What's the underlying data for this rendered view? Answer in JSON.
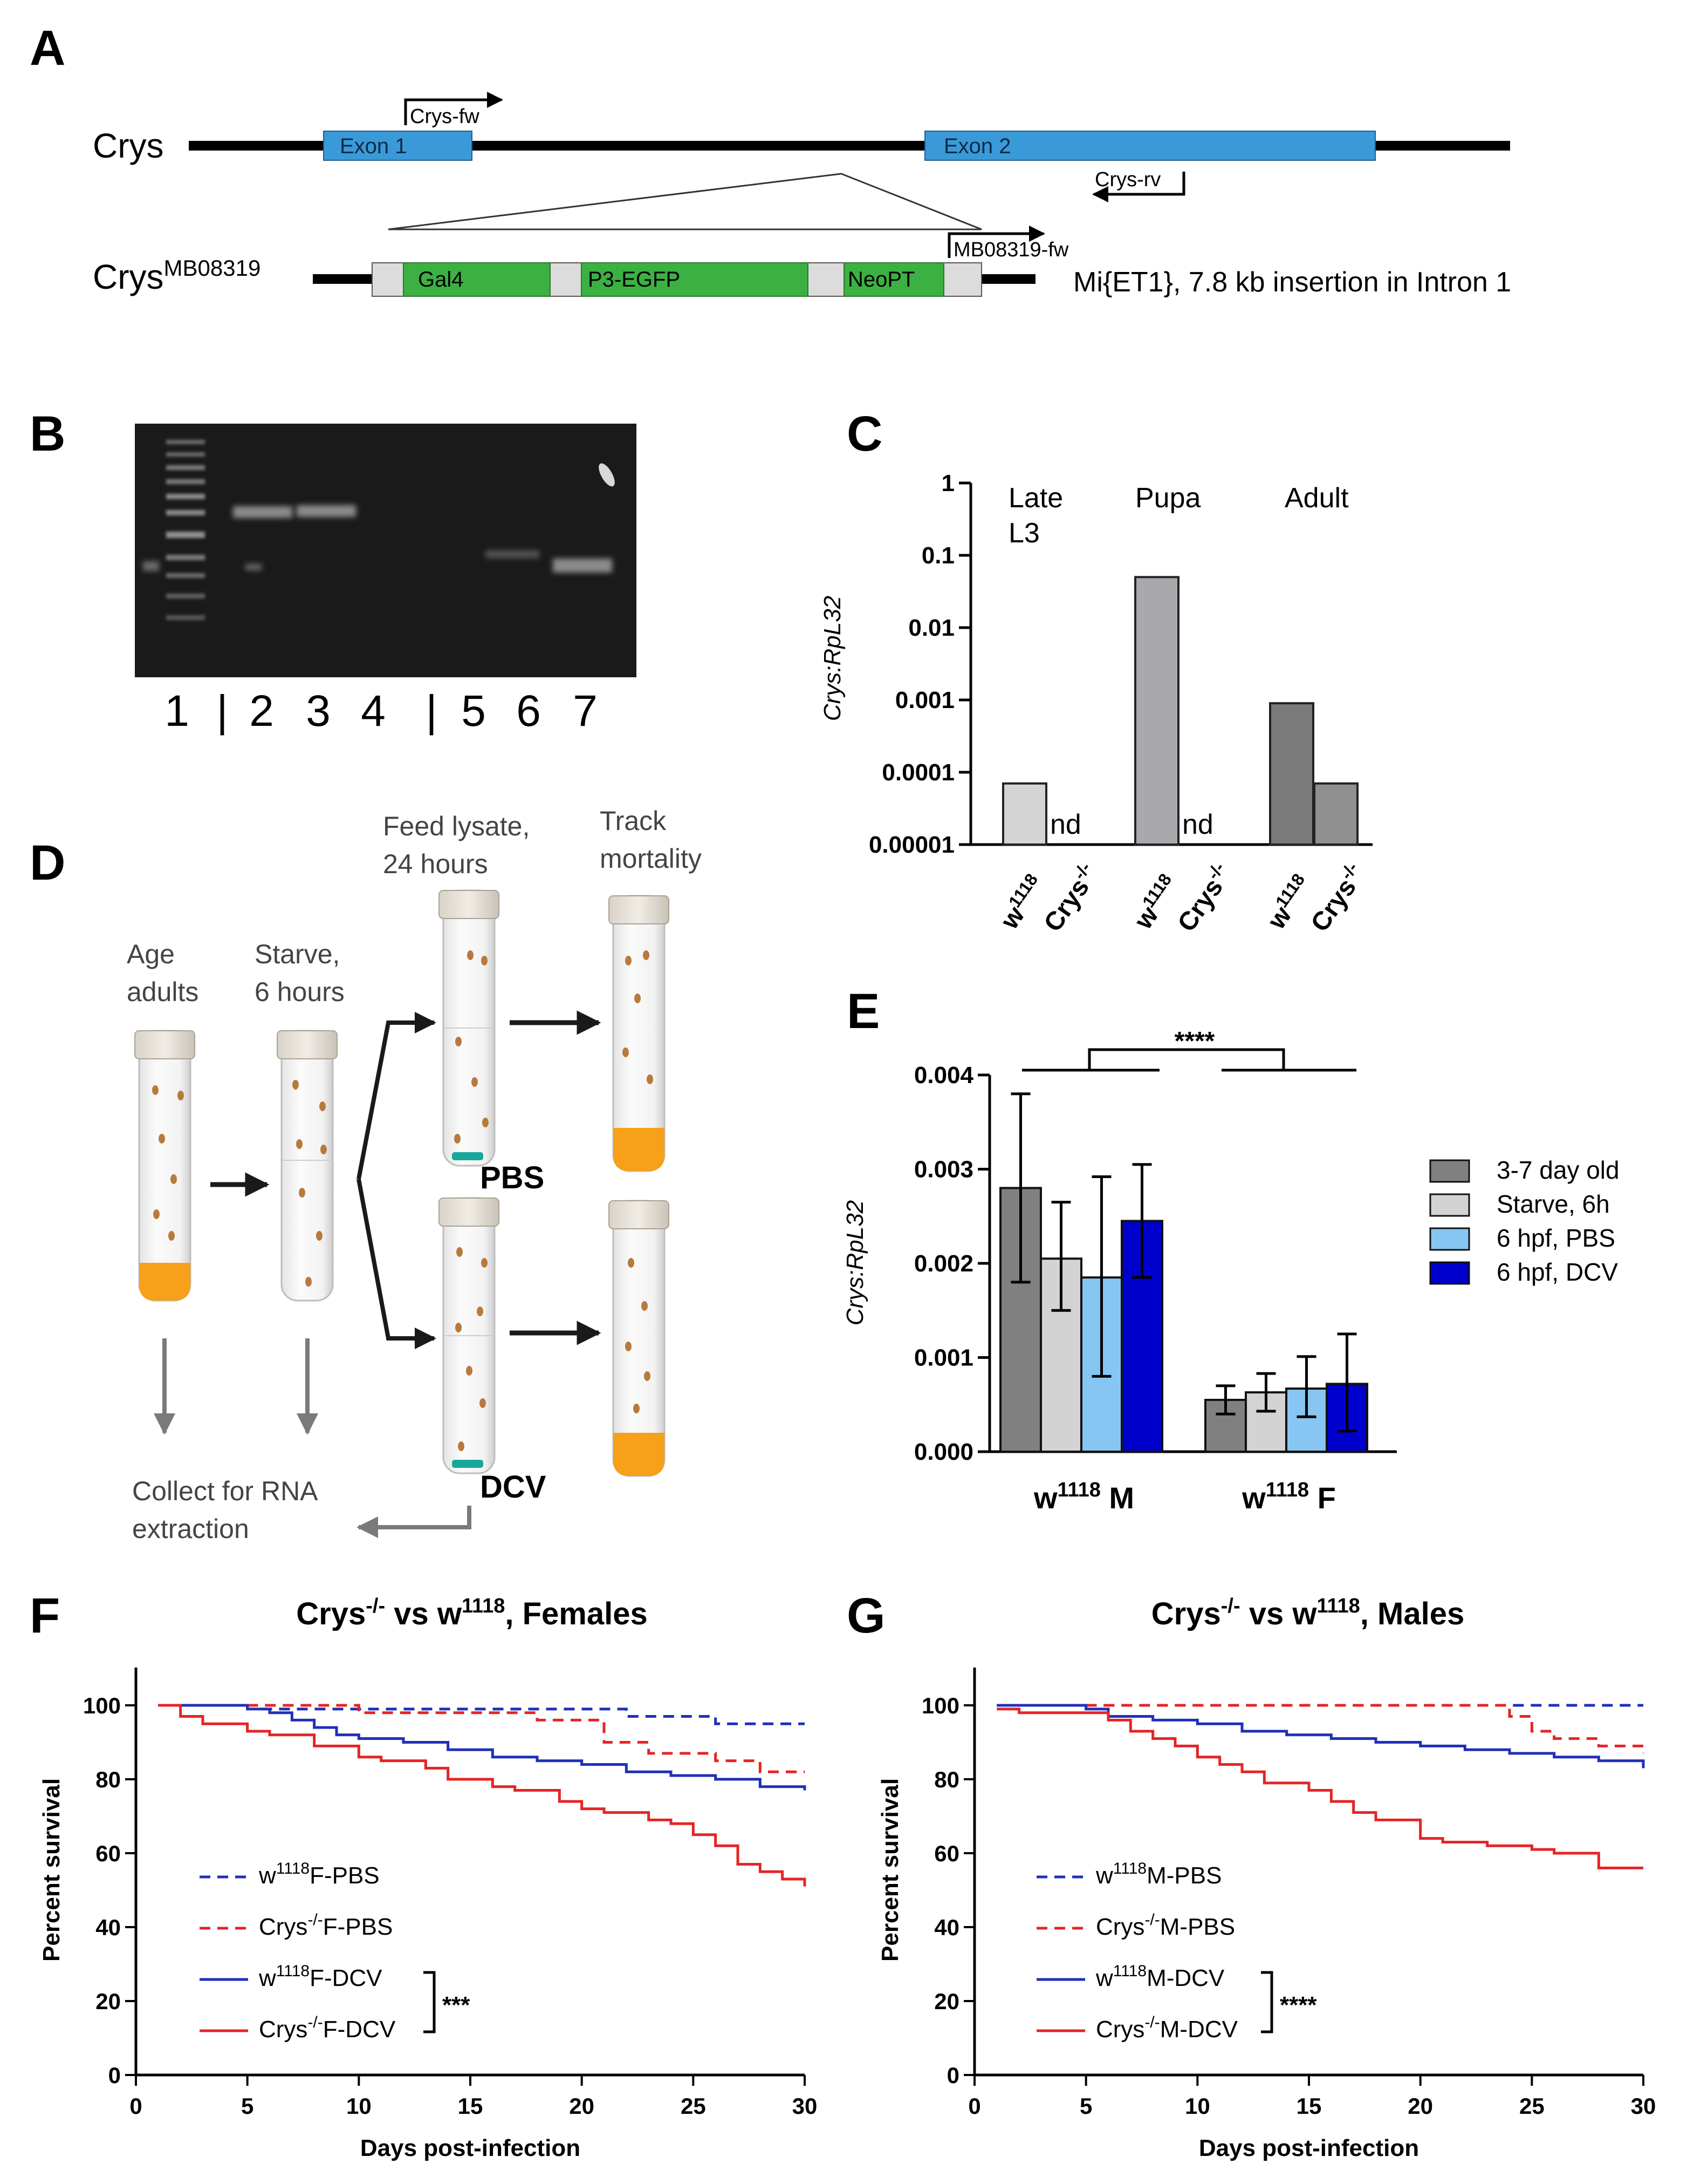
{
  "panel_labels": [
    "A",
    "B",
    "C",
    "D",
    "E",
    "F",
    "G"
  ],
  "colors": {
    "exon": "#3a9ad8",
    "cassette": "#3cb043",
    "gel_bg": "#1a1a1a",
    "c_w1118_l3": "#d4d4d4",
    "c_w1118_pupa": "#a9a9ad",
    "c_w1118_adult": "#7a7a7a",
    "c_crys_adult": "#909090",
    "e_age": "#808080",
    "e_starve": "#d3d3d3",
    "e_pbs": "#87c6f2",
    "e_dcv": "#0000cc",
    "wt": "#1f2fb8",
    "crys": "#e52424",
    "food": "#f7a019",
    "plug": "#17a79b"
  },
  "panel_a": {
    "gene": "Crys",
    "allele_base": "Crys",
    "allele_sup": "MB08319",
    "exon1": "Exon 1",
    "exon2": "Exon 2",
    "primer_fw": "Crys-fw",
    "primer_rv": "Crys-rv",
    "primer_mb": "MB08319-fw",
    "seg_gal4": "Gal4",
    "seg_p3": "P3-EGFP",
    "seg_neo": "NeoPT",
    "insertion": "Mi{ET1}, 7.8 kb insertion in Intron 1"
  },
  "panel_b": {
    "lanes": [
      "1",
      "2",
      "3",
      "4",
      "5",
      "6",
      "7"
    ],
    "sep": "|"
  },
  "panel_d": {
    "age": [
      "Age",
      "adults"
    ],
    "starve": [
      "Starve,",
      "6 hours"
    ],
    "feed": [
      "Feed lysate,",
      "24 hours"
    ],
    "track": [
      "Track",
      "mortality"
    ],
    "pbs": "PBS",
    "dcv": "DCV",
    "collect": [
      "Collect for RNA",
      "extraction"
    ]
  },
  "chart_data": [
    {
      "id": "C",
      "type": "bar",
      "scale": "log",
      "ylabel": "Crys:RpL32",
      "yticks": [
        "1",
        "0.1",
        "0.01",
        "0.001",
        "0.0001",
        "0.00001"
      ],
      "stages": [
        [
          "Late",
          "L3"
        ],
        [
          "Pupa"
        ],
        [
          "Adult"
        ]
      ],
      "categories": [
        "w1118",
        "Crys-/-",
        "w1118",
        "Crys-/-",
        "w1118",
        "Crys-/-"
      ],
      "w_base": "w",
      "w_sup": "1118",
      "crys_base": "Crys",
      "crys_sup": "-/-",
      "values": [
        7e-05,
        null,
        0.05,
        null,
        0.0009,
        7e-05
      ],
      "labels": [
        "",
        "nd",
        "",
        "nd",
        "",
        ""
      ]
    },
    {
      "id": "E",
      "type": "bar",
      "ylabel": "Crys:RpL32",
      "ylim": [
        0,
        0.004
      ],
      "yticks": [
        "0.004",
        "0.003",
        "0.002",
        "0.001",
        "0.000"
      ],
      "groups": [
        {
          "base": "w",
          "sup": "1118",
          "suffix": " M"
        },
        {
          "base": "w",
          "sup": "1118",
          "suffix": " F"
        }
      ],
      "legend": [
        "3-7 day old",
        "Starve, 6h",
        "6 hpf, PBS",
        "6 hpf, DCV"
      ],
      "significance": "****",
      "series": [
        {
          "name": "3-7 day old",
          "values": [
            0.0028,
            0.00055
          ],
          "err_low": [
            0.001,
            0.00015
          ],
          "err_high": [
            0.001,
            0.00015
          ]
        },
        {
          "name": "Starve, 6h",
          "values": [
            0.00205,
            0.00063
          ],
          "err_low": [
            0.00055,
            0.0002
          ],
          "err_high": [
            0.0006,
            0.0002
          ]
        },
        {
          "name": "6 hpf, PBS",
          "values": [
            0.00185,
            0.00067
          ],
          "err_low": [
            0.00105,
            0.0003
          ],
          "err_high": [
            0.00107,
            0.00034
          ]
        },
        {
          "name": "6 hpf, DCV",
          "values": [
            0.00245,
            0.00072
          ],
          "err_low": [
            0.0006,
            0.0005
          ],
          "err_high": [
            0.0006,
            0.00053
          ]
        }
      ]
    },
    {
      "id": "F",
      "type": "line",
      "step": true,
      "title": {
        "a": "Crys",
        "b": "-/-",
        "c": " vs w",
        "d": "1118",
        "e": ", Females"
      },
      "xlabel": "Days post-infection",
      "ylabel": "Percent survival",
      "xlim": [
        0,
        30
      ],
      "ylim": [
        0,
        100
      ],
      "xticks": [
        "0",
        "5",
        "10",
        "15",
        "20",
        "25",
        "30"
      ],
      "yticks": [
        "0",
        "20",
        "40",
        "60",
        "80",
        "100"
      ],
      "significance": "***",
      "series": [
        {
          "base": "w",
          "sup": "1118",
          "suffix": "F-PBS",
          "style": "dashed",
          "color": "wt",
          "x": [
            1,
            5.5,
            22,
            26,
            30
          ],
          "y": [
            100,
            99,
            97,
            95,
            95
          ]
        },
        {
          "base": "Crys",
          "sup": "-/-",
          "suffix": "F-PBS",
          "style": "dashed",
          "color": "crys",
          "x": [
            1,
            6.5,
            10,
            18,
            21,
            23,
            26,
            28,
            30
          ],
          "y": [
            100,
            100,
            98,
            96,
            90,
            87,
            85,
            82,
            82
          ]
        },
        {
          "base": "w",
          "sup": "1118",
          "suffix": "F-DCV",
          "style": "solid",
          "color": "wt",
          "x": [
            1,
            5,
            6,
            7,
            8,
            9,
            10,
            12,
            14,
            16,
            18,
            20,
            22,
            24,
            26,
            28,
            30
          ],
          "y": [
            100,
            99,
            98,
            96,
            94,
            92,
            91,
            90,
            88,
            86,
            85,
            84,
            82,
            81,
            80,
            78,
            77
          ]
        },
        {
          "base": "Crys",
          "sup": "-/-",
          "suffix": "F-DCV",
          "style": "solid",
          "color": "crys",
          "x": [
            1,
            2,
            3,
            5,
            6,
            8,
            10,
            11,
            13,
            14,
            16,
            17,
            19,
            20,
            21,
            23,
            24,
            25,
            26,
            27,
            28,
            29,
            30
          ],
          "y": [
            100,
            97,
            95,
            93,
            92,
            89,
            86,
            85,
            83,
            80,
            78,
            77,
            74,
            72,
            71,
            69,
            68,
            65,
            62,
            57,
            55,
            53,
            51
          ]
        }
      ]
    },
    {
      "id": "G",
      "type": "line",
      "step": true,
      "title": {
        "a": "Crys",
        "b": "-/-",
        "c": " vs w",
        "d": "1118",
        "e": ", Males"
      },
      "xlabel": "Days post-infection",
      "ylabel": "Percent survival",
      "xlim": [
        0,
        30
      ],
      "ylim": [
        0,
        100
      ],
      "xticks": [
        "0",
        "5",
        "10",
        "15",
        "20",
        "25",
        "30"
      ],
      "yticks": [
        "0",
        "20",
        "40",
        "60",
        "80",
        "100"
      ],
      "significance": "****",
      "series": [
        {
          "base": "w",
          "sup": "1118",
          "suffix": "M-PBS",
          "style": "dashed",
          "color": "wt",
          "x": [
            1,
            30
          ],
          "y": [
            100,
            100
          ]
        },
        {
          "base": "Crys",
          "sup": "-/-",
          "suffix": "M-PBS",
          "style": "dashed",
          "color": "crys",
          "x": [
            1,
            24,
            25,
            26,
            28,
            30
          ],
          "y": [
            100,
            97,
            93,
            91,
            89,
            87
          ]
        },
        {
          "base": "w",
          "sup": "1118",
          "suffix": "M-DCV",
          "style": "solid",
          "color": "wt",
          "x": [
            1,
            5,
            6,
            8,
            10,
            12,
            14,
            16,
            18,
            20,
            22,
            24,
            26,
            28,
            30
          ],
          "y": [
            100,
            99,
            97,
            96,
            95,
            93,
            92,
            91,
            90,
            89,
            88,
            87,
            86,
            85,
            83
          ]
        },
        {
          "base": "Crys",
          "sup": "-/-",
          "suffix": "M-DCV",
          "style": "solid",
          "color": "crys",
          "x": [
            1,
            2,
            5,
            6,
            7,
            8,
            9,
            10,
            11,
            12,
            13,
            15,
            16,
            17,
            18,
            20,
            21,
            23,
            25,
            26,
            28,
            30
          ],
          "y": [
            99,
            98,
            98,
            96,
            93,
            91,
            89,
            86,
            84,
            82,
            79,
            77,
            74,
            71,
            69,
            64,
            63,
            62,
            61,
            60,
            56,
            56
          ]
        }
      ]
    }
  ]
}
